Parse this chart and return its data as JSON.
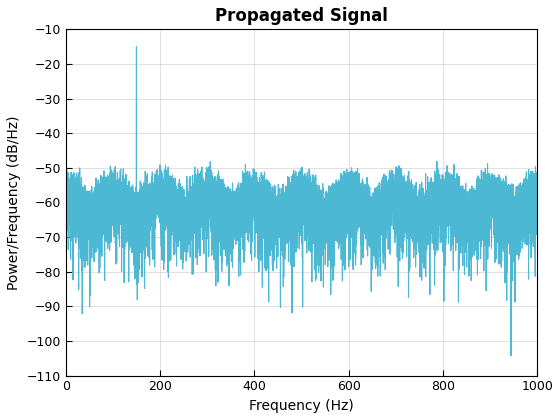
{
  "title": "Propagated Signal",
  "xlabel": "Frequency (Hz)",
  "ylabel": "Power/Frequency (dB/Hz)",
  "xlim": [
    0,
    1000
  ],
  "ylim": [
    -110,
    -10
  ],
  "xticks": [
    0,
    200,
    400,
    600,
    800,
    1000
  ],
  "yticks": [
    -10,
    -20,
    -30,
    -40,
    -50,
    -60,
    -70,
    -80,
    -90,
    -100,
    -110
  ],
  "line_color": "#4db8d4",
  "line_width": 0.8,
  "fs": 2000,
  "signal_freq": 150,
  "noise_floor_db": -65,
  "peak_db": -15,
  "background_color": "#ffffff",
  "grid_color": "#d3d3d3",
  "title_fontsize": 12,
  "label_fontsize": 10
}
